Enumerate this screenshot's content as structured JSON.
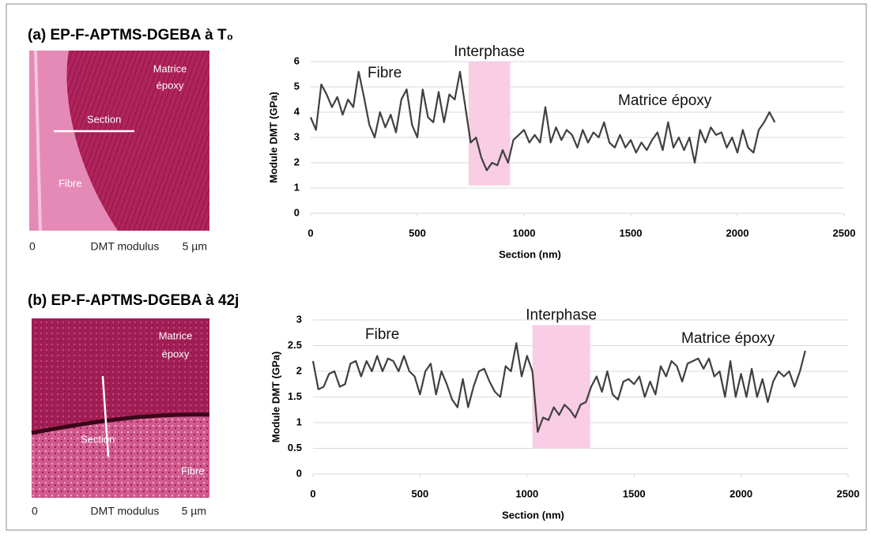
{
  "chart_data": [
    {
      "type": "line",
      "title": "(a) EP-F-APTMS-DGEBA à T₀",
      "xlabel": "Section (nm)",
      "ylabel": "Module DMT (GPa)",
      "color": "#404040",
      "grid": true,
      "xlim": [
        0,
        2500
      ],
      "xticks": [
        0,
        500,
        1000,
        1500,
        2000,
        2500
      ],
      "ylim": [
        0,
        6
      ],
      "yticks": [
        0,
        1,
        2,
        3,
        4,
        5,
        6
      ],
      "highlight": {
        "label": "Interphase",
        "color": "#f9cde4",
        "x": [
          740,
          935
        ],
        "y": [
          1.1,
          6
        ]
      },
      "annotations": [
        "Fibre",
        "Matrice époxy"
      ],
      "image": {
        "labels": [
          "Matrice",
          "époxy",
          "Section",
          "Fibre"
        ],
        "scale": [
          "0",
          "DMT modulus",
          "5 µm"
        ]
      },
      "x": [
        0,
        25,
        50,
        75,
        100,
        125,
        150,
        175,
        200,
        225,
        250,
        275,
        300,
        325,
        350,
        375,
        400,
        425,
        450,
        475,
        500,
        525,
        550,
        575,
        600,
        625,
        650,
        675,
        700,
        725,
        750,
        775,
        800,
        825,
        850,
        875,
        900,
        925,
        950,
        975,
        1000,
        1025,
        1050,
        1075,
        1100,
        1125,
        1150,
        1175,
        1200,
        1225,
        1250,
        1275,
        1300,
        1325,
        1350,
        1375,
        1400,
        1425,
        1450,
        1475,
        1500,
        1525,
        1550,
        1575,
        1600,
        1625,
        1650,
        1675,
        1700,
        1725,
        1750,
        1775,
        1800,
        1825,
        1850,
        1875,
        1900,
        1925,
        1950,
        1975,
        2000,
        2025,
        2050,
        2075,
        2100,
        2125,
        2150,
        2175
      ],
      "values": [
        3.8,
        3.3,
        5.1,
        4.7,
        4.2,
        4.6,
        3.9,
        4.5,
        4.2,
        5.6,
        4.6,
        3.5,
        3.0,
        4.0,
        3.4,
        3.9,
        3.2,
        4.5,
        4.9,
        3.5,
        3.0,
        4.9,
        3.8,
        3.6,
        4.8,
        3.6,
        4.7,
        4.5,
        5.6,
        4.2,
        2.8,
        3.0,
        2.2,
        1.7,
        2.0,
        1.9,
        2.5,
        2.0,
        2.9,
        3.1,
        3.3,
        2.8,
        3.1,
        2.8,
        4.2,
        2.8,
        3.4,
        2.9,
        3.3,
        3.1,
        2.6,
        3.3,
        2.8,
        3.2,
        3.0,
        3.6,
        2.8,
        2.6,
        3.1,
        2.6,
        2.9,
        2.4,
        2.8,
        2.5,
        2.9,
        3.2,
        2.5,
        3.6,
        2.6,
        3.0,
        2.5,
        3.0,
        2.0,
        3.3,
        2.8,
        3.4,
        3.1,
        3.2,
        2.6,
        3.0,
        2.4,
        3.3,
        2.6,
        2.4,
        3.3,
        3.6,
        4.0,
        3.6
      ]
    },
    {
      "type": "line",
      "title": "(b) EP-F-APTMS-DGEBA à 42j",
      "xlabel": "Section (nm)",
      "ylabel": "Module DMT (GPa)",
      "color": "#404040",
      "grid": true,
      "xlim": [
        0,
        2500
      ],
      "xticks": [
        0,
        500,
        1000,
        1500,
        2000,
        2500
      ],
      "ylim": [
        0,
        3
      ],
      "yticks": [
        0,
        0.5,
        1,
        1.5,
        2,
        2.5,
        3
      ],
      "highlight": {
        "label": "Interphase",
        "color": "#f9cde4",
        "x": [
          1025,
          1295
        ],
        "y": [
          0.5,
          2.9
        ]
      },
      "annotations": [
        "Fibre",
        "Matrice époxy"
      ],
      "image": {
        "labels": [
          "Matrice",
          "époxy",
          "Section",
          "Fibre"
        ],
        "scale": [
          "0",
          "DMT modulus",
          "5 µm"
        ]
      },
      "x": [
        0,
        25,
        50,
        75,
        100,
        125,
        150,
        175,
        200,
        225,
        250,
        275,
        300,
        325,
        350,
        375,
        400,
        425,
        450,
        475,
        500,
        525,
        550,
        575,
        600,
        625,
        650,
        675,
        700,
        725,
        750,
        775,
        800,
        825,
        850,
        875,
        900,
        925,
        950,
        975,
        1000,
        1025,
        1050,
        1075,
        1100,
        1125,
        1150,
        1175,
        1200,
        1225,
        1250,
        1275,
        1300,
        1325,
        1350,
        1375,
        1400,
        1425,
        1450,
        1475,
        1500,
        1525,
        1550,
        1575,
        1600,
        1625,
        1650,
        1675,
        1700,
        1725,
        1750,
        1775,
        1800,
        1825,
        1850,
        1875,
        1900,
        1925,
        1950,
        1975,
        2000,
        2025,
        2050,
        2075,
        2100,
        2125,
        2150,
        2175,
        2200,
        2225,
        2250,
        2275,
        2300
      ],
      "values": [
        2.2,
        1.65,
        1.7,
        1.95,
        2.0,
        1.7,
        1.75,
        2.15,
        2.2,
        1.9,
        2.2,
        2.0,
        2.3,
        2.0,
        2.25,
        2.2,
        2.0,
        2.3,
        2.0,
        1.9,
        1.55,
        2.0,
        2.15,
        1.55,
        2.0,
        1.75,
        1.45,
        1.3,
        1.85,
        1.3,
        1.7,
        2.0,
        2.05,
        1.8,
        1.6,
        1.5,
        2.1,
        2.0,
        2.55,
        1.9,
        2.3,
        2.0,
        0.82,
        1.1,
        1.05,
        1.3,
        1.15,
        1.35,
        1.25,
        1.1,
        1.35,
        1.4,
        1.7,
        1.9,
        1.6,
        2.0,
        1.55,
        1.45,
        1.8,
        1.85,
        1.75,
        1.9,
        1.5,
        1.8,
        1.55,
        2.1,
        1.9,
        2.2,
        2.1,
        1.8,
        2.15,
        2.2,
        2.25,
        2.05,
        2.25,
        1.9,
        2.0,
        1.5,
        2.2,
        1.5,
        1.95,
        1.5,
        2.05,
        1.5,
        1.85,
        1.4,
        1.8,
        2.0,
        1.9,
        2.0,
        1.7,
        2.0,
        2.4
      ]
    }
  ]
}
